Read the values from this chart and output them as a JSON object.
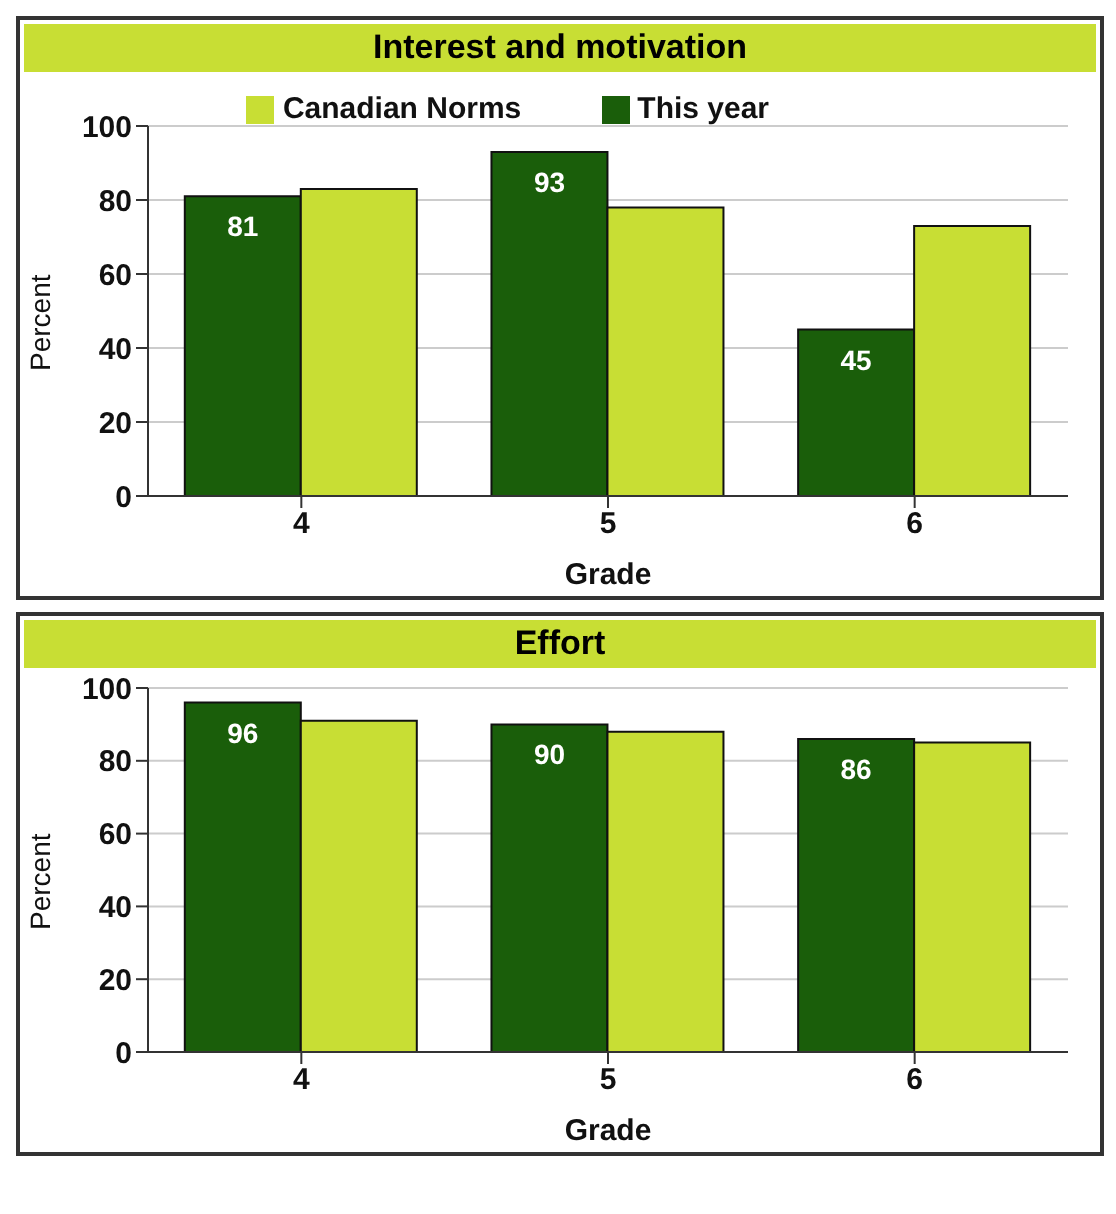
{
  "chart_data": [
    {
      "type": "bar",
      "title": "Interest and motivation",
      "xlabel": "Grade",
      "ylabel": "Percent",
      "categories": [
        "4",
        "5",
        "6"
      ],
      "ylim": [
        0,
        100
      ],
      "yticks": [
        0,
        20,
        40,
        60,
        80,
        100
      ],
      "grid": "y",
      "legend": "top",
      "series": [
        {
          "name": "This year",
          "color": "#1a5e0a",
          "values": [
            81,
            93,
            45
          ],
          "value_labels": [
            "81",
            "93",
            "45"
          ]
        },
        {
          "name": "Canadian Norms",
          "color": "#c8de34",
          "values": [
            83,
            78,
            73
          ]
        }
      ]
    },
    {
      "type": "bar",
      "title": "Effort",
      "xlabel": "Grade",
      "ylabel": "Percent",
      "categories": [
        "4",
        "5",
        "6"
      ],
      "ylim": [
        0,
        100
      ],
      "yticks": [
        0,
        20,
        40,
        60,
        80,
        100
      ],
      "grid": "y",
      "legend": false,
      "series": [
        {
          "color": "#1a5e0a",
          "values": [
            96,
            90,
            86
          ],
          "value_labels": [
            "96",
            "90",
            "86"
          ]
        },
        {
          "color": "#c8de34",
          "values": [
            91,
            88,
            85
          ]
        }
      ]
    }
  ]
}
